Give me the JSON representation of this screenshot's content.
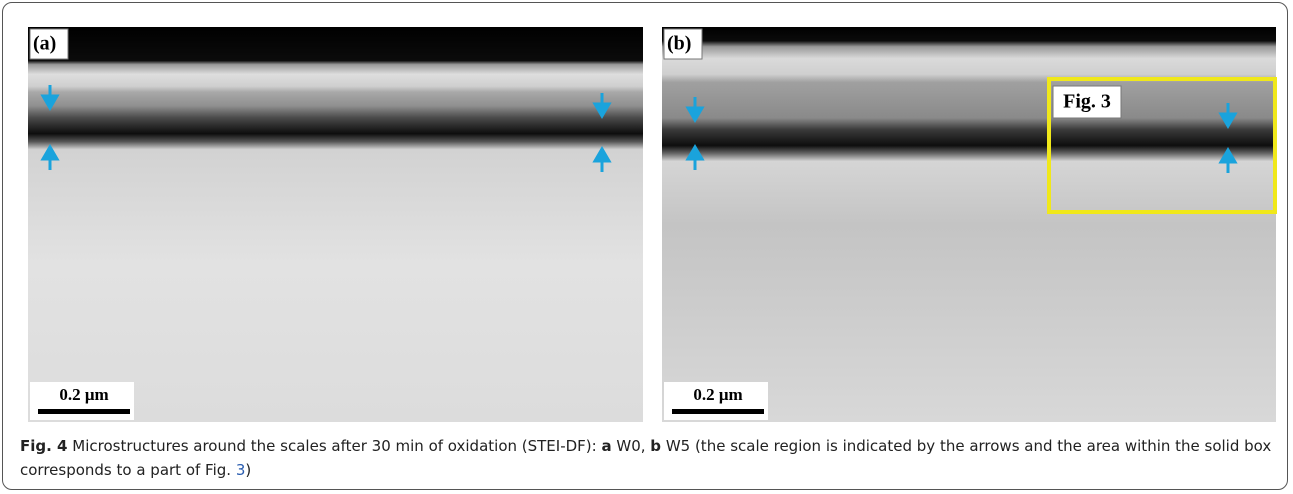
{
  "panels": [
    {
      "label": "(a)",
      "scale_bar": "0.2 μm"
    },
    {
      "label": "(b)",
      "scale_bar": "0.2 μm",
      "box_label": "Fig. 3"
    }
  ],
  "caption": {
    "figure": "Fig. 4",
    "text1": " Microstructures around the scales after 30 min of oxidation (STEI-DF): ",
    "a": "a",
    "text2": " W0, ",
    "b": "b",
    "text3": " W5 (the scale region is indicated by the arrows and the area within the solid box corresponds to a part of Fig. ",
    "ref": "3",
    "text4": ")"
  }
}
